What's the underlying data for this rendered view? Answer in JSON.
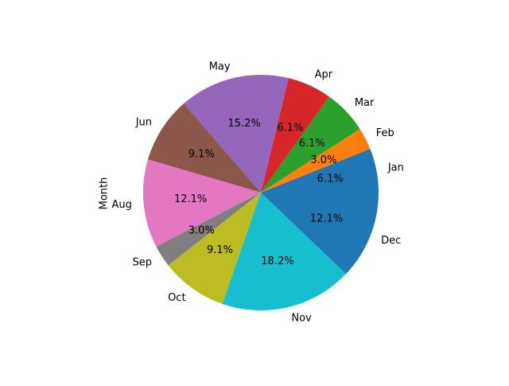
{
  "chart_data": {
    "type": "pie",
    "ylabel": "Month",
    "categories": [
      "Jan",
      "Feb",
      "Mar",
      "Apr",
      "May",
      "Jun",
      "Aug",
      "Sep",
      "Oct",
      "Nov",
      "Dec"
    ],
    "values": [
      2,
      1,
      2,
      2,
      5,
      3,
      4,
      1,
      3,
      6,
      4
    ],
    "percent_labels": [
      "6.1%",
      "3.0%",
      "6.1%",
      "6.1%",
      "15.2%",
      "9.1%",
      "12.1%",
      "3.0%",
      "9.1%",
      "18.2%",
      "12.1%"
    ],
    "colors": [
      "#1f77b4",
      "#ff7f0e",
      "#2ca02c",
      "#d62728",
      "#9467bd",
      "#8c564b",
      "#e377c2",
      "#7f7f7f",
      "#bcbd22",
      "#17becf",
      "#1f77b4"
    ],
    "start_angle_deg": 0,
    "direction": "counterclockwise",
    "legend": "none",
    "grid": false
  }
}
